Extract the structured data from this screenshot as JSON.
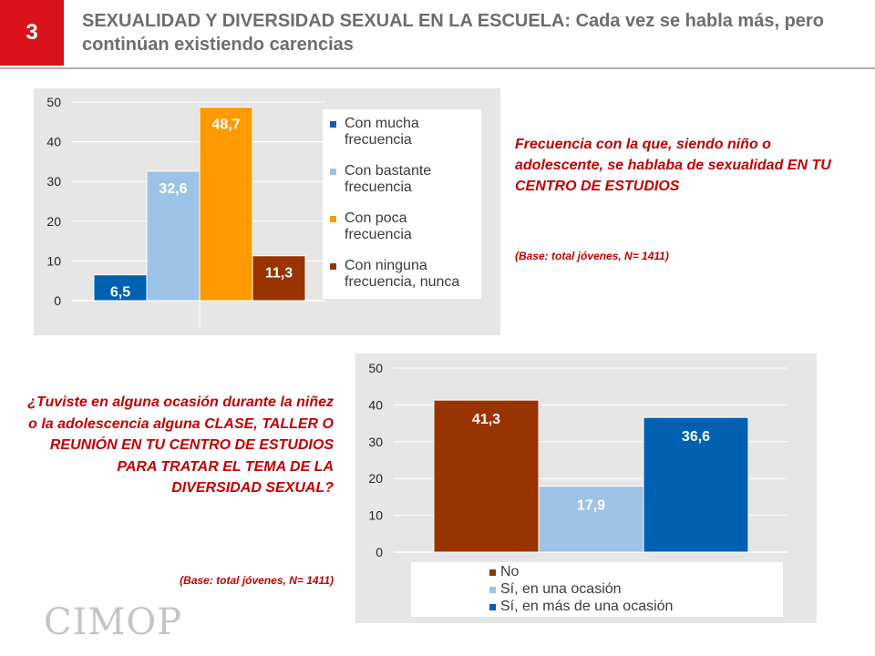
{
  "header": {
    "number": "3",
    "title": "SEXUALIDAD Y DIVERSIDAD SEXUAL EN LA ESCUELA: Cada vez se habla más, pero continúan existiendo carencias"
  },
  "colors": {
    "accent_red": "#d9121b",
    "question_red": "#c00000",
    "dark_blue": "#0060b2",
    "light_blue": "#9dc3e6",
    "orange": "#ff9900",
    "brown": "#993300"
  },
  "chart_data": [
    {
      "type": "bar",
      "categories": [
        "Con mucha frecuencia",
        "Con bastante frecuencia",
        "Con poca frecuencia",
        "Con ninguna frecuencia, nunca"
      ],
      "values": [
        6.5,
        32.6,
        48.7,
        11.3
      ],
      "value_labels": [
        "6,5",
        "32,6",
        "48,7",
        "11,3"
      ],
      "colors": [
        "#0060b2",
        "#9dc3e6",
        "#ff9900",
        "#993300"
      ],
      "yticks": [
        "0",
        "10",
        "20",
        "30",
        "40",
        "50"
      ],
      "ylim": [
        0,
        50
      ],
      "legend": [
        "Con mucha frecuencia",
        "Con bastante frecuencia",
        "Con poca frecuencia",
        "Con ninguna frecuencia, nunca"
      ]
    },
    {
      "type": "bar",
      "categories": [
        "No",
        "Sí, en una ocasión",
        "Sí, en más de una ocasión"
      ],
      "values": [
        41.3,
        17.9,
        36.6
      ],
      "value_labels": [
        "41,3",
        "17,9",
        "36,6"
      ],
      "colors": [
        "#993300",
        "#9dc3e6",
        "#0060b2"
      ],
      "yticks": [
        "0",
        "10",
        "20",
        "30",
        "40",
        "50"
      ],
      "ylim": [
        0,
        50
      ],
      "legend": [
        "No",
        "Sí, en una ocasión",
        "Sí, en más de una ocasión"
      ]
    }
  ],
  "legend1": {
    "items": [
      {
        "line1": "Con mucha",
        "line2": "frecuencia"
      },
      {
        "line1": "Con bastante",
        "line2": "frecuencia"
      },
      {
        "line1": "Con poca",
        "line2": "frecuencia"
      },
      {
        "line1": "Con ninguna",
        "line2": "frecuencia, nunca"
      }
    ]
  },
  "legend2": {
    "items": [
      "No",
      "Sí, en una ocasión",
      "Sí, en más de una ocasión"
    ]
  },
  "question1": {
    "part1": "Frecuencia con la que, siendo niño o adolescente, se hablaba de sexualidad ",
    "part2": "EN TU CENTRO DE ESTUDIOS",
    "base": "(Base: total jóvenes, N= 1411)"
  },
  "question2": {
    "part1": "¿Tuviste en alguna ocasión durante la niñez o la adolescencia alguna ",
    "part2": "CLASE, TALLER O REUNIÓN EN TU CENTRO DE ESTUDIOS PARA TRATAR EL TEMA DE LA DIVERSIDAD SEXUAL?",
    "base": "(Base: total jóvenes, N= 1411)"
  },
  "logo": "CIMOP"
}
